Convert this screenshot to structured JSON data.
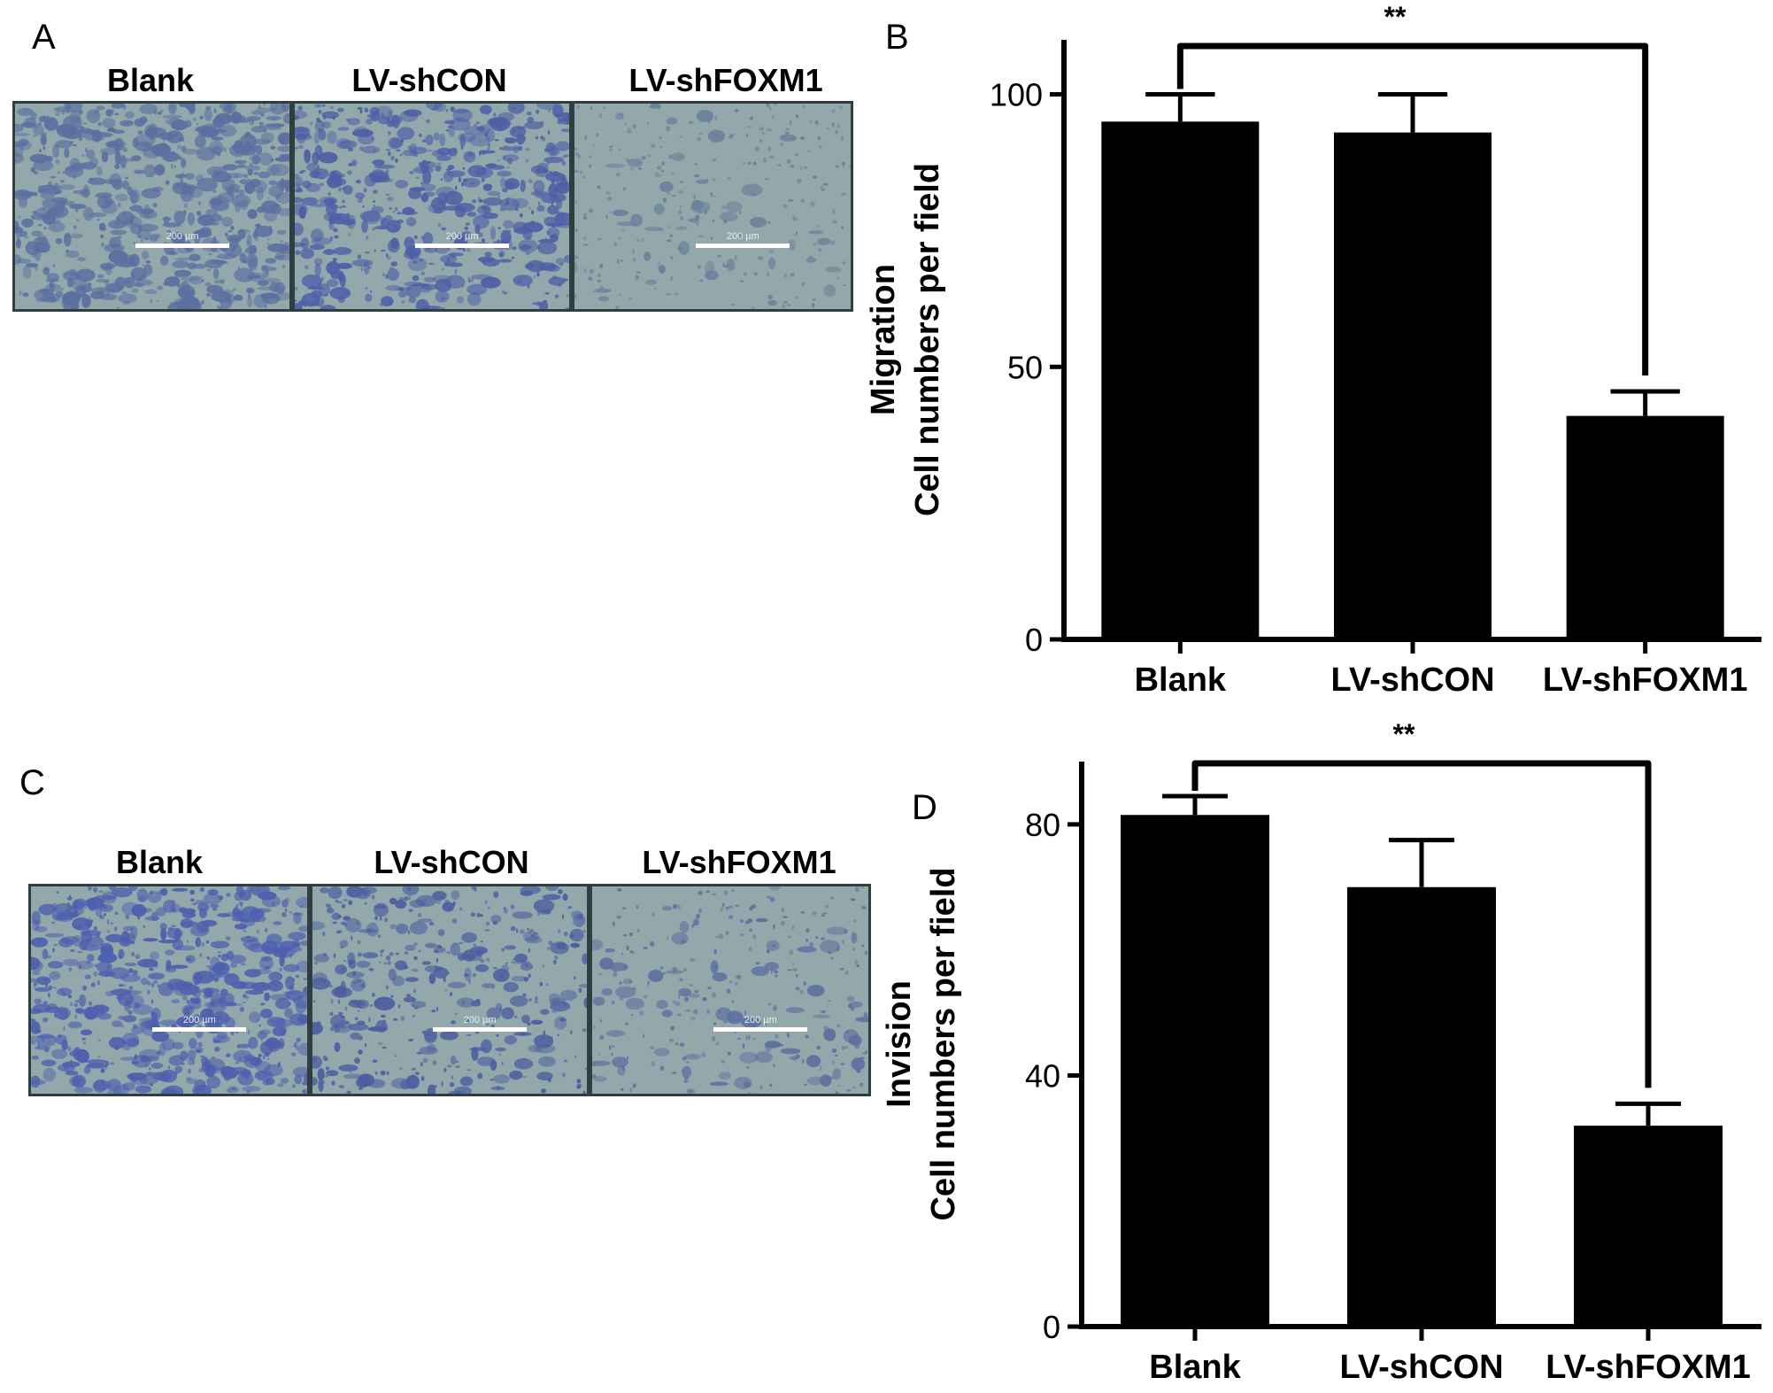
{
  "panels": {
    "A": {
      "letter": "A",
      "images": [
        {
          "label": "Blank",
          "scale_text": "200 µm",
          "density": 0.62,
          "tone": "#5a6fa0"
        },
        {
          "label": "LV-shCON",
          "scale_text": "200 µm",
          "density": 0.55,
          "tone": "#4e5fa6"
        },
        {
          "label": "LV-shFOXM1",
          "scale_text": "200 µm",
          "density": 0.18,
          "tone": "#6a7f9a"
        }
      ]
    },
    "C": {
      "letter": "C",
      "images": [
        {
          "label": "Blank",
          "scale_text": "200 µm",
          "density": 0.6,
          "tone": "#4d5fae"
        },
        {
          "label": "LV-shCON",
          "scale_text": "200 µm",
          "density": 0.35,
          "tone": "#4c5ea0"
        },
        {
          "label": "LV-shFOXM1",
          "scale_text": "200 µm",
          "density": 0.2,
          "tone": "#5d6f9e"
        }
      ]
    }
  },
  "chart_data": [
    {
      "panel": "B",
      "type": "bar",
      "categories": [
        "Blank",
        "LV-shCON",
        "LV-shFOXM1"
      ],
      "values": [
        95,
        93,
        41
      ],
      "errors": [
        5,
        7,
        4.5
      ],
      "ylabel_line1": "Migration",
      "ylabel_line2": "Cell numbers per field",
      "ylim": [
        0,
        110
      ],
      "yticks": [
        0,
        50,
        100
      ],
      "significance": {
        "label": "**",
        "from": 0,
        "to": 2
      },
      "bar_color": "#000000",
      "grid": false
    },
    {
      "panel": "D",
      "type": "bar",
      "categories": [
        "Blank",
        "LV-shCON",
        "LV-shFOXM1"
      ],
      "values": [
        81.5,
        70,
        32
      ],
      "errors": [
        3,
        7.5,
        3.5
      ],
      "ylabel_line1": "Invision",
      "ylabel_line2": "Cell numbers per field",
      "ylim": [
        0,
        90
      ],
      "yticks": [
        0,
        40,
        80
      ],
      "significance": {
        "label": "**",
        "from": 0,
        "to": 2
      },
      "bar_color": "#000000",
      "grid": false
    }
  ]
}
